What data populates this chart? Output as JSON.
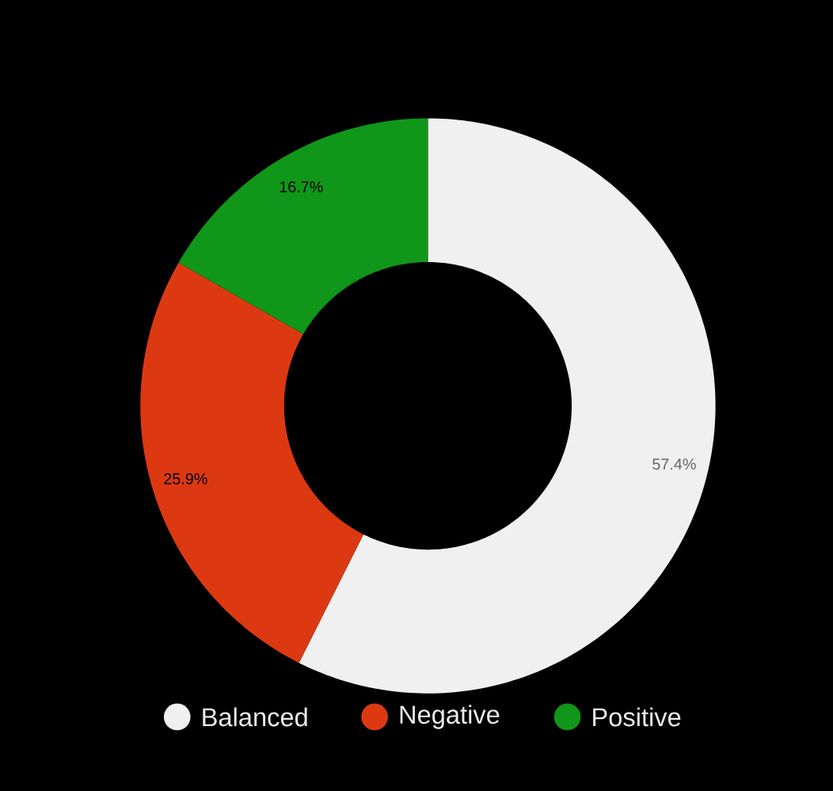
{
  "chart_data": {
    "type": "donut",
    "categories": [
      "Balanced",
      "Negative",
      "Positive"
    ],
    "values": [
      57.4,
      25.9,
      16.7
    ],
    "colors": [
      "#f0f0f0",
      "#dc3912",
      "#109618"
    ],
    "value_labels": [
      "57.4%",
      "25.9%",
      "16.7%"
    ],
    "legend": "bottom"
  }
}
